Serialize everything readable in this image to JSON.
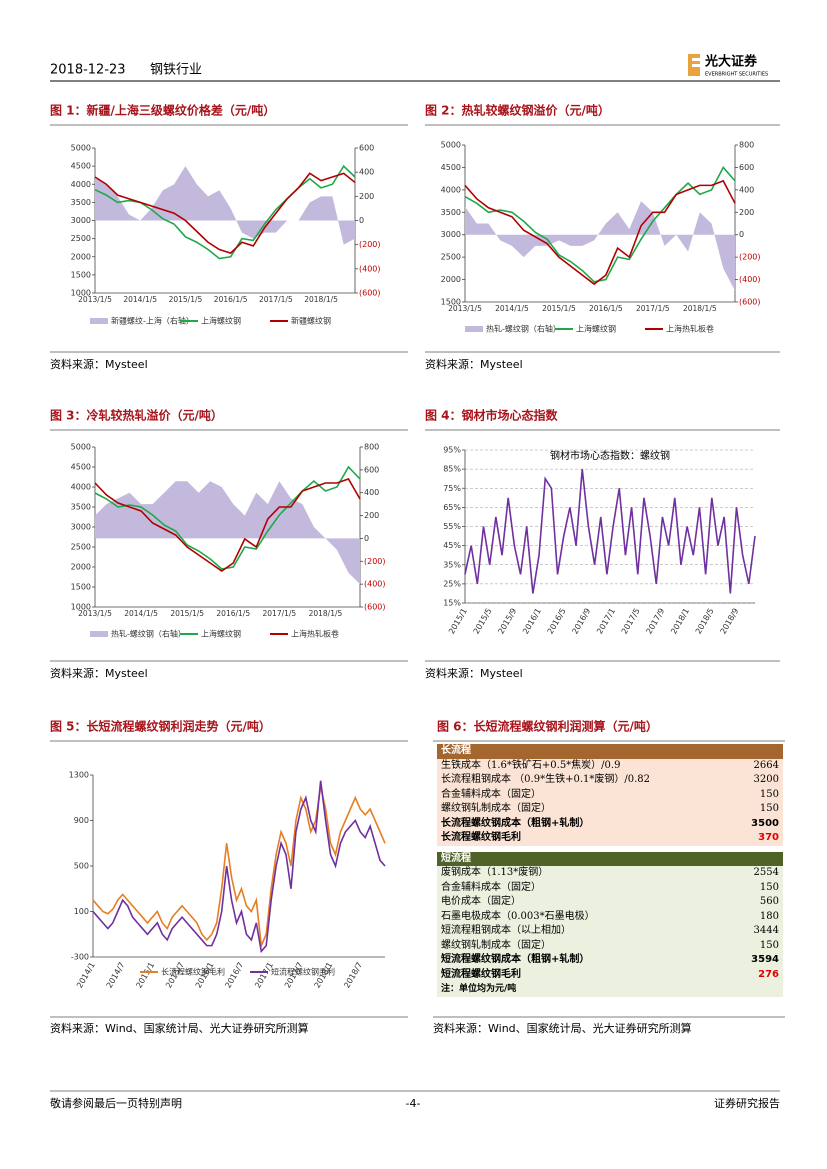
{
  "header": {
    "date": "2018-12-23",
    "industry": "钢铁行业",
    "logo": "光大证券",
    "logo_en": "EVERBRIGHT SECURITIES"
  },
  "chart_data": [
    {
      "type": "line",
      "title": "图 1：新疆/上海三级螺纹价格差（元/吨）",
      "source": "资料来源：Mysteel",
      "categories": [
        "2013/1/5",
        null,
        null,
        null,
        "2014/1/5",
        null,
        null,
        null,
        "2015/1/5",
        null,
        null,
        null,
        "2016/1/5",
        null,
        null,
        null,
        "2017/1/5",
        null,
        null,
        null,
        "2018/1/5",
        null,
        null,
        null
      ],
      "ylim": [
        1000,
        5000
      ],
      "yticks": [
        1000,
        1500,
        2000,
        2500,
        3000,
        3500,
        4000,
        4500,
        5000
      ],
      "y2lim": [
        -600,
        600
      ],
      "y2ticks": [
        {
          "value": -600,
          "label": "(600)"
        },
        {
          "value": -400,
          "label": "(400)"
        },
        {
          "value": -200,
          "label": "(200)"
        },
        0,
        200,
        400,
        600
      ],
      "grid": false,
      "series": [
        {
          "name": "新疆螺纹-上海（右轴）",
          "type": "area",
          "axis": "y2",
          "color": "#c3b9dc",
          "values": [
            350,
            300,
            200,
            50,
            0,
            100,
            250,
            300,
            450,
            300,
            200,
            250,
            100,
            -100,
            -150,
            -100,
            -100,
            0,
            0,
            150,
            200,
            200,
            -200,
            -150
          ]
        },
        {
          "name": "上海螺纹钢",
          "type": "line",
          "color": "#1fa84a",
          "values": [
            3850,
            3700,
            3500,
            3550,
            3500,
            3300,
            3050,
            2900,
            2550,
            2400,
            2200,
            1950,
            2000,
            2500,
            2450,
            2900,
            3300,
            3600,
            3900,
            4150,
            3900,
            4000,
            4500,
            4200
          ]
        },
        {
          "name": "新疆螺纹钢",
          "type": "line",
          "color": "#b00000",
          "values": [
            4200,
            4000,
            3700,
            3600,
            3500,
            3400,
            3300,
            3200,
            3000,
            2700,
            2400,
            2200,
            2100,
            2400,
            2300,
            2800,
            3200,
            3600,
            3900,
            4300,
            4100,
            4200,
            4300,
            4050
          ]
        }
      ]
    },
    {
      "type": "line",
      "title": "图 2：热轧较螺纹钢溢价（元/吨）",
      "source": "资料来源：Mysteel",
      "categories": [
        "2013/1/5",
        null,
        null,
        null,
        "2014/1/5",
        null,
        null,
        null,
        "2015/1/5",
        null,
        null,
        null,
        "2016/1/5",
        null,
        null,
        null,
        "2017/1/5",
        null,
        null,
        null,
        "2018/1/5",
        null,
        null,
        null
      ],
      "ylim": [
        1500,
        5000
      ],
      "yticks": [
        1500,
        2000,
        2500,
        3000,
        3500,
        4000,
        4500,
        5000
      ],
      "y2lim": [
        -600,
        800
      ],
      "y2ticks": [
        {
          "value": -600,
          "label": "(600)"
        },
        {
          "value": -400,
          "label": "(400)"
        },
        {
          "value": -200,
          "label": "(200)"
        },
        0,
        200,
        400,
        600,
        800
      ],
      "grid": false,
      "series": [
        {
          "name": "热轧-螺纹钢（右轴）",
          "type": "area",
          "axis": "y2",
          "color": "#c3b9dc",
          "values": [
            250,
            100,
            100,
            -50,
            -100,
            -200,
            -100,
            -100,
            -50,
            -100,
            -100,
            -50,
            100,
            200,
            50,
            300,
            200,
            -100,
            0,
            -150,
            200,
            100,
            -300,
            -500
          ]
        },
        {
          "name": "上海螺纹钢",
          "type": "line",
          "color": "#1fa84a",
          "values": [
            3850,
            3700,
            3500,
            3550,
            3500,
            3300,
            3050,
            2900,
            2550,
            2400,
            2200,
            1950,
            2000,
            2500,
            2450,
            2900,
            3300,
            3600,
            3900,
            4150,
            3900,
            4000,
            4500,
            4200
          ]
        },
        {
          "name": "上海热轧板卷",
          "type": "line",
          "color": "#b00000",
          "values": [
            4100,
            3800,
            3600,
            3500,
            3400,
            3100,
            2950,
            2800,
            2500,
            2300,
            2100,
            1900,
            2100,
            2700,
            2500,
            3200,
            3500,
            3500,
            3900,
            4000,
            4100,
            4100,
            4200,
            3700
          ]
        }
      ]
    },
    {
      "type": "line",
      "title": "图 3：冷轧较热轧溢价（元/吨）",
      "source": "资料来源：Mysteel",
      "categories": [
        "2013/1/5",
        null,
        null,
        null,
        "2014/1/5",
        null,
        null,
        null,
        "2015/1/5",
        null,
        null,
        null,
        "2016/1/5",
        null,
        null,
        null,
        "2017/1/5",
        null,
        null,
        null,
        "2018/1/5",
        null,
        null,
        null
      ],
      "ylim": [
        1000,
        5000
      ],
      "yticks": [
        1000,
        1500,
        2000,
        2500,
        3000,
        3500,
        4000,
        4500,
        5000
      ],
      "y2lim": [
        -600,
        800
      ],
      "y2ticks": [
        {
          "value": -600,
          "label": "(600)"
        },
        {
          "value": -400,
          "label": "(400)"
        },
        {
          "value": -200,
          "label": "(200)"
        },
        0,
        200,
        400,
        600,
        800
      ],
      "grid": false,
      "series": [
        {
          "name": "热轧-螺纹钢（右轴）",
          "type": "area",
          "axis": "y2",
          "color": "#c3b9dc",
          "values": [
            200,
            300,
            350,
            400,
            300,
            300,
            400,
            500,
            500,
            400,
            500,
            450,
            300,
            200,
            400,
            300,
            500,
            350,
            300,
            100,
            0,
            -100,
            -300,
            -400
          ]
        },
        {
          "name": "上海螺纹钢",
          "type": "line",
          "color": "#1fa84a",
          "values": [
            3850,
            3700,
            3500,
            3550,
            3500,
            3300,
            3050,
            2900,
            2550,
            2400,
            2200,
            1950,
            2000,
            2500,
            2450,
            2900,
            3300,
            3600,
            3900,
            4150,
            3900,
            4000,
            4500,
            4200
          ]
        },
        {
          "name": "上海热轧板卷",
          "type": "line",
          "color": "#b00000",
          "values": [
            4100,
            3800,
            3600,
            3500,
            3400,
            3100,
            2950,
            2800,
            2500,
            2300,
            2100,
            1900,
            2100,
            2700,
            2500,
            3200,
            3500,
            3500,
            3900,
            4000,
            4100,
            4100,
            4200,
            3700
          ]
        }
      ]
    },
    {
      "type": "line",
      "title": "图 4：钢材市场心态指数",
      "source": "资料来源：Mysteel",
      "categories": [
        "2015/1",
        null,
        null,
        null,
        "2015/5",
        null,
        null,
        null,
        "2015/9",
        null,
        null,
        null,
        "2016/1",
        null,
        null,
        null,
        "2016/5",
        null,
        null,
        null,
        "2016/9",
        null,
        null,
        null,
        "2017/1",
        null,
        null,
        null,
        "2017/5",
        null,
        null,
        null,
        "2017/9",
        null,
        null,
        null,
        "2018/1",
        null,
        null,
        null,
        "2018/5",
        null,
        null,
        null,
        "2018/9",
        null,
        null,
        null
      ],
      "ylim": [
        15,
        95
      ],
      "yticks": [
        {
          "value": 15,
          "label": "15%"
        },
        {
          "value": 25,
          "label": "25%"
        },
        {
          "value": 35,
          "label": "35%"
        },
        {
          "value": 45,
          "label": "45%"
        },
        {
          "value": 55,
          "label": "55%"
        },
        {
          "value": 65,
          "label": "65%"
        },
        {
          "value": 75,
          "label": "75%"
        },
        {
          "value": 85,
          "label": "85%"
        },
        {
          "value": 95,
          "label": "95%"
        }
      ],
      "grid": true,
      "series": [
        {
          "name": "钢材市场心态指数：螺纹钢",
          "type": "line",
          "color": "#7030a0",
          "values": [
            30,
            45,
            25,
            55,
            35,
            60,
            40,
            70,
            45,
            30,
            55,
            20,
            40,
            80,
            75,
            30,
            50,
            65,
            45,
            85,
            55,
            35,
            60,
            30,
            55,
            75,
            40,
            65,
            30,
            70,
            50,
            25,
            60,
            45,
            70,
            35,
            55,
            40,
            65,
            30,
            70,
            45,
            60,
            20,
            65,
            40,
            25,
            50
          ]
        }
      ]
    },
    {
      "type": "line",
      "title": "图 5：长短流程螺纹钢利润走势（元/吨）",
      "source": "资料来源：Wind、国家统计局、光大证券研究所测算",
      "categories": [
        "2014/1",
        null,
        null,
        null,
        null,
        null,
        "2014/7",
        null,
        null,
        null,
        null,
        null,
        "2015/1",
        null,
        null,
        null,
        null,
        null,
        "2015/7",
        null,
        null,
        null,
        null,
        null,
        "2016/1",
        null,
        null,
        null,
        null,
        null,
        "2016/7",
        null,
        null,
        null,
        null,
        null,
        "2017/1",
        null,
        null,
        null,
        null,
        null,
        "2017/7",
        null,
        null,
        null,
        null,
        null,
        "2018/1",
        null,
        null,
        null,
        null,
        null,
        "2018/7",
        null,
        null,
        null,
        null,
        null
      ],
      "ylim": [
        -300,
        1300
      ],
      "yticks": [
        -300,
        100,
        500,
        900,
        1300
      ],
      "grid": false,
      "series": [
        {
          "name": "长流程螺纹钢毛利",
          "type": "line",
          "color": "#e67e22",
          "values": [
            200,
            150,
            100,
            80,
            120,
            200,
            250,
            200,
            150,
            100,
            50,
            0,
            50,
            100,
            0,
            -50,
            50,
            100,
            150,
            100,
            50,
            0,
            -100,
            -150,
            -100,
            0,
            300,
            700,
            400,
            200,
            300,
            150,
            100,
            200,
            -200,
            -100,
            300,
            600,
            800,
            700,
            500,
            900,
            1100,
            1000,
            800,
            900,
            1200,
            1000,
            700,
            600,
            800,
            900,
            1000,
            1100,
            1000,
            950,
            1000,
            900,
            800,
            700
          ]
        },
        {
          "name": "短流程螺纹钢毛利",
          "type": "line",
          "color": "#7030a0",
          "values": [
            100,
            50,
            0,
            -50,
            0,
            100,
            200,
            150,
            50,
            0,
            -50,
            -100,
            -50,
            0,
            -100,
            -150,
            -50,
            0,
            50,
            0,
            -50,
            -100,
            -150,
            -200,
            -200,
            -100,
            100,
            500,
            200,
            0,
            100,
            -100,
            -150,
            0,
            -250,
            -200,
            200,
            500,
            700,
            600,
            300,
            800,
            1000,
            1100,
            900,
            800,
            1250,
            900,
            600,
            500,
            700,
            800,
            850,
            900,
            800,
            750,
            850,
            700,
            550,
            500
          ]
        }
      ]
    }
  ],
  "table": {
    "title": "图 6：长短流程螺纹钢利润测算（元/吨）",
    "source": "资料来源：Wind、国家统计局、光大证券研究所测算",
    "sections": [
      {
        "header": "长流程",
        "rows": [
          [
            "生铁成本（1.6*铁矿石+0.5*焦炭）/0.9",
            2664
          ],
          [
            "长流程粗钢成本 （0.9*生铁+0.1*废钢）/0.82",
            3200
          ],
          [
            "合金辅料成本（固定）",
            150
          ],
          [
            "螺纹钢轧制成本（固定）",
            150
          ],
          [
            "长流程螺纹钢成本（粗钢+轧制）",
            3500
          ],
          [
            "长流程螺纹钢毛利",
            370
          ]
        ]
      },
      {
        "header": "短流程",
        "rows": [
          [
            "废钢成本（1.13*废钢）",
            2554
          ],
          [
            "合金辅料成本（固定）",
            150
          ],
          [
            "电价成本（固定）",
            560
          ],
          [
            "石墨电极成本（0.003*石墨电极）",
            180
          ],
          [
            "短流程粗钢成本（以上相加）",
            3444
          ],
          [
            "螺纹钢轧制成本（固定）",
            150
          ],
          [
            "短流程螺纹钢成本（粗钢+轧制）",
            3594
          ],
          [
            "短流程螺纹钢毛利",
            276
          ]
        ]
      }
    ],
    "note": "注：单位均为元/吨"
  },
  "footer": {
    "disclaimer": "敬请参阅最后一页特别声明",
    "page": "-4-",
    "report": "证券研究报告"
  }
}
